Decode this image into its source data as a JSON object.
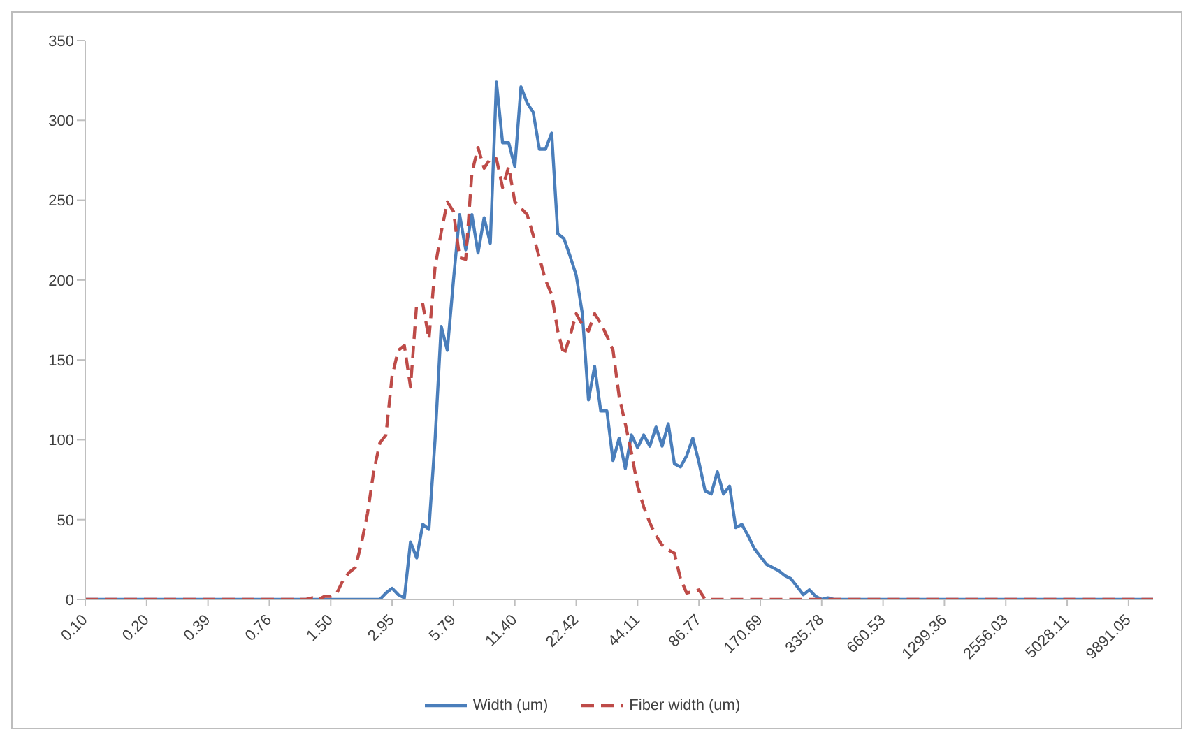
{
  "chart_data": {
    "type": "line",
    "categories": [
      "0.10",
      null,
      null,
      null,
      null,
      null,
      null,
      null,
      null,
      null,
      "0.20",
      null,
      null,
      null,
      null,
      null,
      null,
      null,
      null,
      null,
      "0.39",
      null,
      null,
      null,
      null,
      null,
      null,
      null,
      null,
      null,
      "0.76",
      null,
      null,
      null,
      null,
      null,
      null,
      null,
      null,
      null,
      "1.50",
      null,
      null,
      null,
      null,
      null,
      null,
      null,
      null,
      null,
      "2.95",
      null,
      null,
      null,
      null,
      null,
      null,
      null,
      null,
      null,
      "5.79",
      null,
      null,
      null,
      null,
      null,
      null,
      null,
      null,
      null,
      "11.40",
      null,
      null,
      null,
      null,
      null,
      null,
      null,
      null,
      null,
      "22.42",
      null,
      null,
      null,
      null,
      null,
      null,
      null,
      null,
      null,
      "44.11",
      null,
      null,
      null,
      null,
      null,
      null,
      null,
      null,
      null,
      "86.77",
      null,
      null,
      null,
      null,
      null,
      null,
      null,
      null,
      null,
      "170.69",
      null,
      null,
      null,
      null,
      null,
      null,
      null,
      null,
      null,
      "335.78",
      null,
      null,
      null,
      null,
      null,
      null,
      null,
      null,
      null,
      "660.53",
      null,
      null,
      null,
      null,
      null,
      null,
      null,
      null,
      null,
      "1299.36",
      null,
      null,
      null,
      null,
      null,
      null,
      null,
      null,
      null,
      "2556.03",
      null,
      null,
      null,
      null,
      null,
      null,
      null,
      null,
      null,
      "5028.11",
      null,
      null,
      null,
      null,
      null,
      null,
      null,
      null,
      null,
      "9891.05",
      null,
      null,
      null,
      null
    ],
    "series": [
      {
        "name": "Width (um)",
        "color": "#4a7ebb",
        "line_style": "solid",
        "values": [
          0,
          0,
          0,
          0,
          0,
          0,
          0,
          0,
          0,
          0,
          0,
          0,
          0,
          0,
          0,
          0,
          0,
          0,
          0,
          0,
          0,
          0,
          0,
          0,
          0,
          0,
          0,
          0,
          0,
          0,
          0,
          0,
          0,
          0,
          0,
          0,
          0,
          0,
          0,
          0,
          0,
          0,
          0,
          0,
          0,
          0,
          0,
          0,
          0,
          4,
          7,
          3,
          1,
          36,
          26,
          47,
          44,
          100,
          171,
          156,
          200,
          241,
          219,
          241,
          217,
          239,
          223,
          324,
          286,
          286,
          271,
          321,
          311,
          305,
          282,
          282,
          292,
          229,
          226,
          215,
          203,
          179,
          125,
          146,
          118,
          118,
          87,
          101,
          82,
          103,
          95,
          103,
          96,
          108,
          96,
          110,
          85,
          83,
          90,
          101,
          86,
          68,
          66,
          80,
          66,
          71,
          45,
          47,
          40,
          32,
          27,
          22,
          20,
          18,
          15,
          13,
          8,
          3,
          6,
          2,
          0,
          1,
          0,
          0,
          0,
          0,
          0,
          0,
          0,
          0,
          0,
          0,
          0,
          0,
          0,
          0,
          0,
          0,
          0,
          0,
          0,
          0,
          0,
          0,
          0,
          0,
          0,
          0,
          0,
          0,
          0,
          0,
          0,
          0,
          0,
          0,
          0,
          0,
          0,
          0,
          0,
          0,
          0,
          0,
          0,
          0,
          0,
          0,
          0,
          0,
          0,
          0,
          0,
          0,
          0
        ]
      },
      {
        "name": "Fiber width (um)",
        "color": "#be4b48",
        "line_style": "dashed",
        "values": [
          0,
          0,
          0,
          0,
          0,
          0,
          0,
          0,
          0,
          0,
          0,
          0,
          0,
          0,
          0,
          0,
          0,
          0,
          0,
          0,
          0,
          0,
          0,
          0,
          0,
          0,
          0,
          0,
          0,
          0,
          0,
          0,
          0,
          0,
          0,
          0,
          0,
          1,
          0,
          2,
          2,
          4,
          12,
          17,
          20,
          35,
          54,
          80,
          98,
          103,
          140,
          156,
          159,
          133,
          185,
          185,
          163,
          208,
          230,
          249,
          243,
          214,
          213,
          267,
          283,
          270,
          276,
          276,
          258,
          271,
          249,
          245,
          241,
          228,
          214,
          200,
          191,
          168,
          153,
          165,
          179,
          172,
          168,
          179,
          173,
          165,
          156,
          127,
          110,
          92,
          71,
          58,
          48,
          40,
          34,
          31,
          29,
          13,
          4,
          5,
          6,
          0,
          0,
          0,
          0,
          0,
          0,
          0,
          0,
          0,
          0,
          0,
          0,
          0,
          0,
          0,
          0,
          0,
          0,
          0,
          0,
          0,
          0,
          0,
          0,
          0,
          0,
          0,
          0,
          0,
          0,
          0,
          0,
          0,
          0,
          0,
          0,
          0,
          0,
          0,
          0,
          0,
          0,
          0,
          0,
          0,
          0,
          0,
          0,
          0,
          0,
          0,
          0,
          0,
          0,
          0,
          0,
          0,
          0,
          0,
          0,
          0,
          0,
          0,
          0,
          0,
          0,
          0,
          0,
          0,
          0,
          0,
          0,
          0,
          0
        ]
      }
    ],
    "ylim": [
      0,
      350
    ],
    "yticks": [
      0,
      50,
      100,
      150,
      200,
      250,
      300,
      350
    ],
    "grid": false,
    "legend": "bottom",
    "marker": "none"
  }
}
